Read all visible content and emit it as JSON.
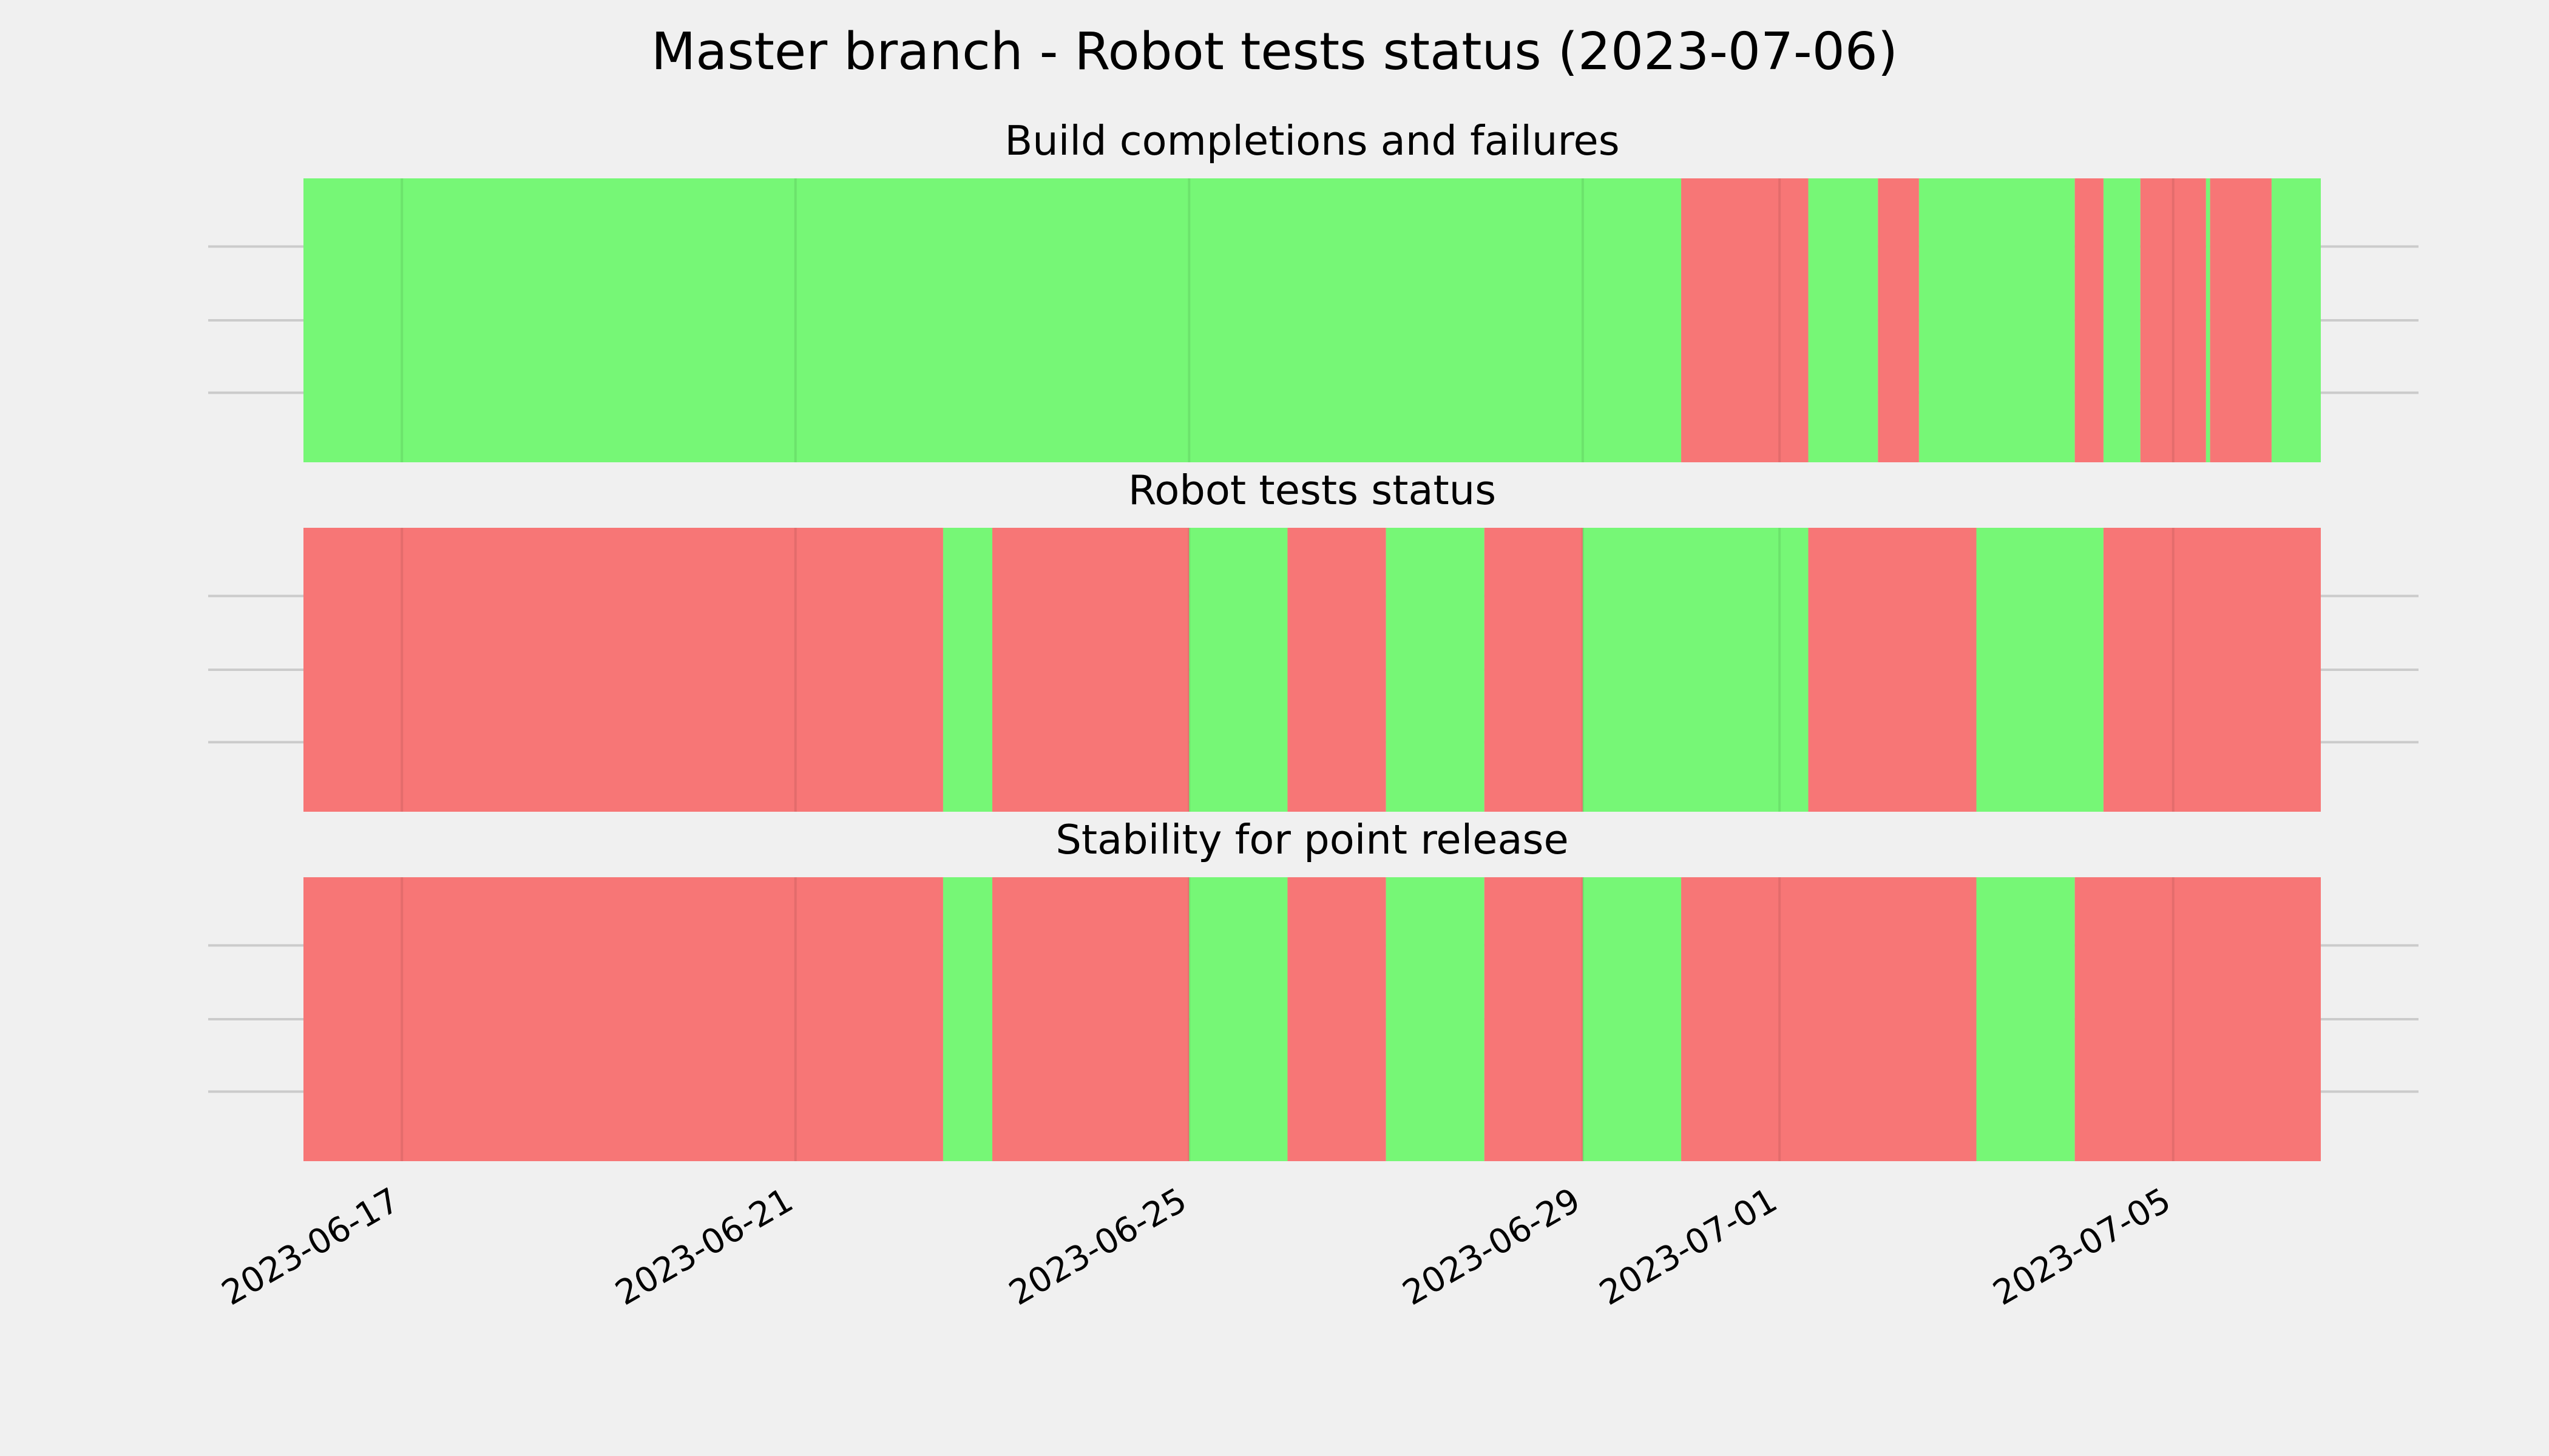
{
  "chart_data": {
    "type": "timeline",
    "title": "Master branch - Robot tests status (2023-07-06)",
    "x_type": "date",
    "xlim": [
      "2023-06-16T00:00",
      "2023-07-06T12:00"
    ],
    "x_ticks": [
      "2023-06-17",
      "2023-06-21",
      "2023-06-25",
      "2023-06-29",
      "2023-07-01",
      "2023-07-05"
    ],
    "grid": true,
    "colors": {
      "pass": "#76f776",
      "fail": "#f77676"
    },
    "panels": [
      {
        "title": "Build completions and failures",
        "segments": [
          {
            "start": "2023-06-16T00:00",
            "end": "2023-06-30T00:00",
            "status": "pass"
          },
          {
            "start": "2023-06-30T00:00",
            "end": "2023-07-01T07:00",
            "status": "fail"
          },
          {
            "start": "2023-07-01T07:00",
            "end": "2023-07-02T00:00",
            "status": "pass"
          },
          {
            "start": "2023-07-02T00:00",
            "end": "2023-07-02T10:00",
            "status": "fail"
          },
          {
            "start": "2023-07-02T10:00",
            "end": "2023-07-04T00:00",
            "status": "pass"
          },
          {
            "start": "2023-07-04T00:00",
            "end": "2023-07-04T07:00",
            "status": "fail"
          },
          {
            "start": "2023-07-04T07:00",
            "end": "2023-07-04T16:00",
            "status": "pass"
          },
          {
            "start": "2023-07-04T16:00",
            "end": "2023-07-05T08:00",
            "status": "fail"
          },
          {
            "start": "2023-07-05T08:00",
            "end": "2023-07-05T09:00",
            "status": "pass"
          },
          {
            "start": "2023-07-05T09:00",
            "end": "2023-07-06T00:00",
            "status": "fail"
          },
          {
            "start": "2023-07-06T00:00",
            "end": "2023-07-06T12:00",
            "status": "pass"
          }
        ]
      },
      {
        "title": "Robot tests status",
        "segments": [
          {
            "start": "2023-06-16T00:00",
            "end": "2023-06-22T12:00",
            "status": "fail"
          },
          {
            "start": "2023-06-22T12:00",
            "end": "2023-06-23T00:00",
            "status": "pass"
          },
          {
            "start": "2023-06-23T00:00",
            "end": "2023-06-25T00:00",
            "status": "fail"
          },
          {
            "start": "2023-06-25T00:00",
            "end": "2023-06-26T00:00",
            "status": "pass"
          },
          {
            "start": "2023-06-26T00:00",
            "end": "2023-06-27T00:00",
            "status": "fail"
          },
          {
            "start": "2023-06-27T00:00",
            "end": "2023-06-28T00:00",
            "status": "pass"
          },
          {
            "start": "2023-06-28T00:00",
            "end": "2023-06-29T00:00",
            "status": "fail"
          },
          {
            "start": "2023-06-29T00:00",
            "end": "2023-07-01T07:00",
            "status": "pass"
          },
          {
            "start": "2023-07-01T07:00",
            "end": "2023-07-03T00:00",
            "status": "fail"
          },
          {
            "start": "2023-07-03T00:00",
            "end": "2023-07-04T07:00",
            "status": "pass"
          },
          {
            "start": "2023-07-04T07:00",
            "end": "2023-07-06T12:00",
            "status": "fail"
          }
        ]
      },
      {
        "title": "Stability for point release",
        "segments": [
          {
            "start": "2023-06-16T00:00",
            "end": "2023-06-22T12:00",
            "status": "fail"
          },
          {
            "start": "2023-06-22T12:00",
            "end": "2023-06-23T00:00",
            "status": "pass"
          },
          {
            "start": "2023-06-23T00:00",
            "end": "2023-06-25T00:00",
            "status": "fail"
          },
          {
            "start": "2023-06-25T00:00",
            "end": "2023-06-26T00:00",
            "status": "pass"
          },
          {
            "start": "2023-06-26T00:00",
            "end": "2023-06-27T00:00",
            "status": "fail"
          },
          {
            "start": "2023-06-27T00:00",
            "end": "2023-06-28T00:00",
            "status": "pass"
          },
          {
            "start": "2023-06-28T00:00",
            "end": "2023-06-29T00:00",
            "status": "fail"
          },
          {
            "start": "2023-06-29T00:00",
            "end": "2023-06-30T00:00",
            "status": "pass"
          },
          {
            "start": "2023-06-30T00:00",
            "end": "2023-07-03T00:00",
            "status": "fail"
          },
          {
            "start": "2023-07-03T00:00",
            "end": "2023-07-04T00:00",
            "status": "pass"
          },
          {
            "start": "2023-07-04T00:00",
            "end": "2023-07-06T12:00",
            "status": "fail"
          }
        ]
      }
    ]
  }
}
